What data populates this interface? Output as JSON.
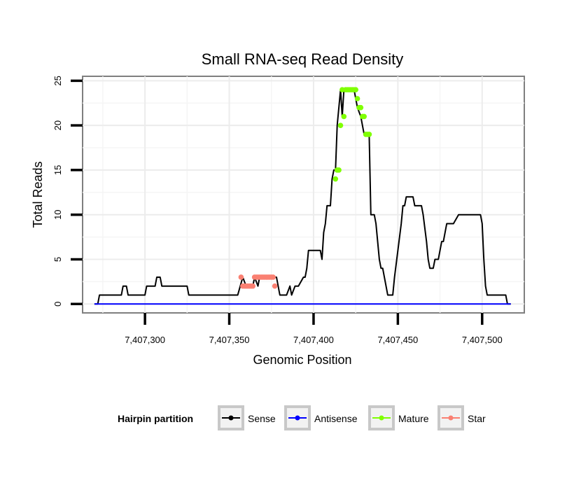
{
  "chart_data": {
    "type": "line",
    "title": "Small RNA-seq Read Density",
    "xlabel": "Genomic Position",
    "ylabel": "Total Reads",
    "xlim": [
      7407263,
      7407525
    ],
    "ylim": [
      -1,
      25.5
    ],
    "x_ticks": [
      7407300,
      7407350,
      7407400,
      7407450,
      7407500
    ],
    "x_tick_labels": [
      "7,407,300",
      "7,407,350",
      "7,407,400",
      "7,407,450",
      "7,407,500"
    ],
    "y_ticks": [
      0,
      5,
      10,
      15,
      20,
      25
    ],
    "y_tick_labels": [
      "0",
      "5",
      "10",
      "15",
      "20",
      "25"
    ],
    "grid": true,
    "legend": {
      "title": "Hairpin partition",
      "position": "bottom",
      "entries": [
        "Sense",
        "Antisense",
        "Mature",
        "Star"
      ]
    },
    "colors": {
      "Sense": "#000000",
      "Antisense": "#0000ff",
      "Mature": "#7fff00",
      "Star": "#fa8072"
    },
    "series": [
      {
        "name": "Sense",
        "style": "line",
        "x": [
          7407270,
          7407272,
          7407273,
          7407286,
          7407287,
          7407289,
          7407290,
          7407300,
          7407301,
          7407306,
          7407307,
          7407309,
          7407310,
          7407325,
          7407326,
          7407355,
          7407358,
          7407360,
          7407364,
          7407365,
          7407367,
          7407368,
          7407378,
          7407380,
          7407384,
          7407386,
          7407387,
          7407389,
          7407390,
          7407391,
          7407394,
          7407395,
          7407396,
          7407397,
          7407399,
          7407404,
          7407405,
          7407406,
          7407407,
          7407408,
          7407409,
          7407410,
          7407411,
          7407412,
          7407413,
          7407414,
          7407416,
          7407417,
          7407418,
          7407419,
          7407420,
          7407424,
          7407425,
          7407426,
          7407428,
          7407430,
          7407432,
          7407433,
          7407434,
          7407435,
          7407436,
          7407437,
          7407438,
          7407439,
          7407440,
          7407441,
          7407443,
          7407444,
          7407445,
          7407446,
          7407447,
          7407448,
          7407452,
          7407453,
          7407454,
          7407455,
          7407459,
          7407460,
          7407461,
          7407464,
          7407465,
          7407467,
          7407468,
          7407469,
          7407470,
          7407471,
          7407472,
          7407473,
          7407474,
          7407475,
          7407476,
          7407477,
          7407478,
          7407479,
          7407482,
          7407483,
          7407486,
          7407487,
          7407492,
          7407499,
          7407500,
          7407501,
          7407502,
          7407503,
          7407504,
          7407513,
          7407514,
          7407515,
          7407517
        ],
        "y": [
          0,
          0,
          1,
          1,
          2,
          2,
          1,
          1,
          2,
          2,
          3,
          3,
          2,
          2,
          1,
          1,
          3,
          2,
          2,
          3,
          2,
          3,
          3,
          1,
          1,
          2,
          1,
          2,
          2,
          2,
          3,
          3,
          4,
          6,
          6,
          6,
          5,
          8,
          9,
          11,
          11,
          11,
          14,
          15,
          15,
          20,
          24,
          21,
          24,
          24,
          24,
          24,
          23,
          22,
          21,
          19,
          19,
          19,
          10,
          10,
          10,
          9,
          7,
          5,
          4,
          4,
          2,
          1,
          1,
          1,
          1,
          3,
          9,
          11,
          11,
          12,
          12,
          11,
          11,
          11,
          10,
          7,
          5,
          4,
          4,
          4,
          5,
          5,
          5,
          6,
          7,
          7,
          8,
          9,
          9,
          9,
          10,
          10,
          10,
          10,
          9,
          5,
          2,
          1,
          1,
          1,
          1,
          0,
          0
        ]
      },
      {
        "name": "Antisense",
        "style": "line",
        "x": [
          7407270,
          7407517
        ],
        "y": [
          0,
          0
        ]
      },
      {
        "name": "Mature",
        "style": "points",
        "x": [
          7407413,
          7407414,
          7407415,
          7407416,
          7407417,
          7407418,
          7407419,
          7407420,
          7407421,
          7407422,
          7407423,
          7407424,
          7407425,
          7407426,
          7407427,
          7407428,
          7407429,
          7407430,
          7407431,
          7407432,
          7407433
        ],
        "y": [
          14,
          15,
          15,
          20,
          24,
          21,
          24,
          24,
          24,
          24,
          24,
          24,
          24,
          23,
          22,
          22,
          21,
          21,
          19,
          19,
          19
        ]
      },
      {
        "name": "Star",
        "style": "points",
        "x": [
          7407357,
          7407358,
          7407359,
          7407360,
          7407361,
          7407362,
          7407363,
          7407364,
          7407365,
          7407366,
          7407367,
          7407368,
          7407369,
          7407370,
          7407371,
          7407372,
          7407373,
          7407374,
          7407375,
          7407376,
          7407377
        ],
        "y": [
          3,
          2,
          2,
          2,
          2,
          2,
          2,
          2,
          3,
          3,
          3,
          3,
          3,
          3,
          3,
          3,
          3,
          3,
          3,
          3,
          2
        ]
      }
    ]
  }
}
